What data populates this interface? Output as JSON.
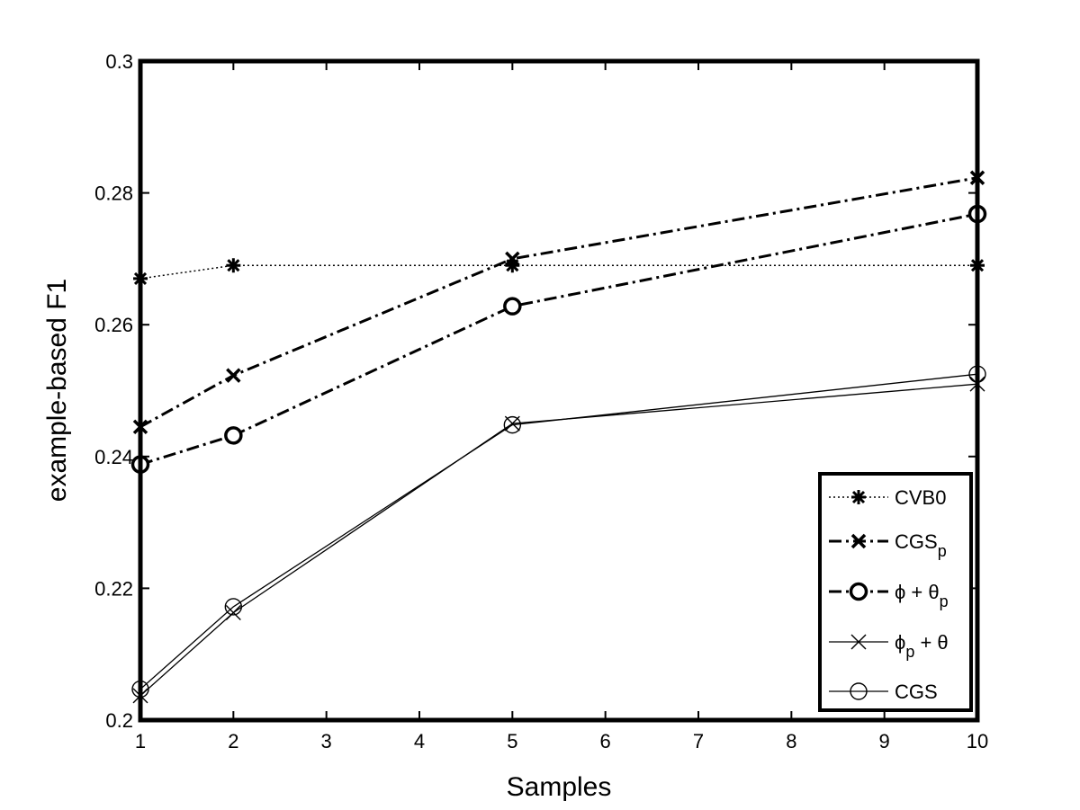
{
  "chart_data": {
    "type": "line",
    "title": "",
    "xlabel": "Samples",
    "ylabel": "example-based F1",
    "xlim": [
      1,
      10
    ],
    "ylim": [
      0.2,
      0.3
    ],
    "xticks": [
      1,
      2,
      3,
      4,
      5,
      6,
      7,
      8,
      9,
      10
    ],
    "xtick_labels": [
      "1",
      "2",
      "3",
      "4",
      "5",
      "6",
      "7",
      "8",
      "9",
      "10"
    ],
    "yticks": [
      0.2,
      0.22,
      0.24,
      0.26,
      0.28,
      0.3
    ],
    "ytick_labels": [
      "0.2",
      "0.22",
      "0.24",
      "0.26",
      "0.28",
      "0.3"
    ],
    "grid": false,
    "legend_position": "bottom-right",
    "x": [
      1,
      2,
      5,
      10
    ],
    "series": [
      {
        "id": "cvb0",
        "name": "CVB0",
        "legend_main": "CVB0",
        "legend_sub": "",
        "legend_tail": "",
        "values": [
          0.267,
          0.269,
          0.269,
          0.269
        ],
        "marker": "asterisk",
        "dash": "2,3",
        "width": 1.5
      },
      {
        "id": "cgsp",
        "name": "CGSp",
        "legend_main": "CGS",
        "legend_sub": "p",
        "legend_tail": "",
        "values": [
          0.2445,
          0.2523,
          0.27,
          0.2823
        ],
        "marker": "x-bold",
        "dash": "14,5,3,5",
        "width": 3
      },
      {
        "id": "phi-theta-p",
        "name": "ϕ + θp",
        "legend_main": "ϕ + θ",
        "legend_sub": "p",
        "legend_tail": "",
        "values": [
          0.2388,
          0.2432,
          0.2628,
          0.2768
        ],
        "marker": "circle-bold",
        "dash": "14,5,3,5",
        "width": 3
      },
      {
        "id": "phi-p-theta",
        "name": "ϕp + θ",
        "legend_main": "ϕ",
        "legend_sub": "p",
        "legend_tail": " + θ",
        "values": [
          0.2037,
          0.2163,
          0.245,
          0.251
        ],
        "marker": "x-thin",
        "dash": "",
        "width": 1.3
      },
      {
        "id": "cgs",
        "name": "CGS",
        "legend_main": "CGS",
        "legend_sub": "",
        "legend_tail": "",
        "values": [
          0.2047,
          0.2172,
          0.2448,
          0.2525
        ],
        "marker": "circle-thin",
        "dash": "",
        "width": 1.3
      }
    ]
  }
}
